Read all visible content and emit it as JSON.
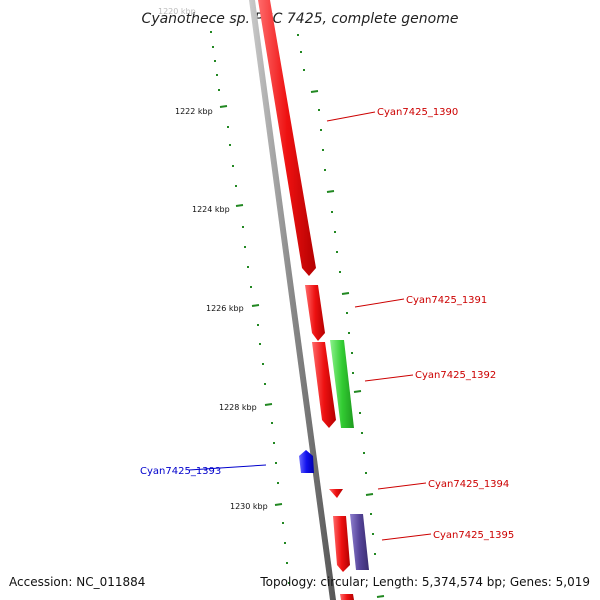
{
  "title": "Cyanothece sp. PCC 7425, complete genome",
  "footer": {
    "accession": "Accession: NC_011884",
    "summary": "Topology: circular; Length: 5,374,574 bp; Genes: 5,019"
  },
  "colors": {
    "forward_cds": "#ee1111",
    "reverse_cds": "#1111ee",
    "rna_gene": "#33cc33",
    "misc_feature": "#554499",
    "backbone": "#888888",
    "tick": "#228822"
  },
  "ruler": {
    "unit": "kbp",
    "labels": [
      "1220 kbp",
      "1222 kbp",
      "1224 kbp",
      "1226 kbp",
      "1228 kbp",
      "1230 kbp"
    ]
  },
  "genes": [
    {
      "id": "Cyan7425_1390",
      "strand": "forward",
      "type": "cds"
    },
    {
      "id": "Cyan7425_1391",
      "strand": "forward",
      "type": "cds"
    },
    {
      "id": "Cyan7425_1392",
      "strand": "forward",
      "type": "cds"
    },
    {
      "id": "Cyan7425_1393",
      "strand": "reverse",
      "type": "cds"
    },
    {
      "id": "Cyan7425_1394",
      "strand": "forward",
      "type": "cds"
    },
    {
      "id": "Cyan7425_1395",
      "strand": "forward",
      "type": "cds"
    }
  ]
}
